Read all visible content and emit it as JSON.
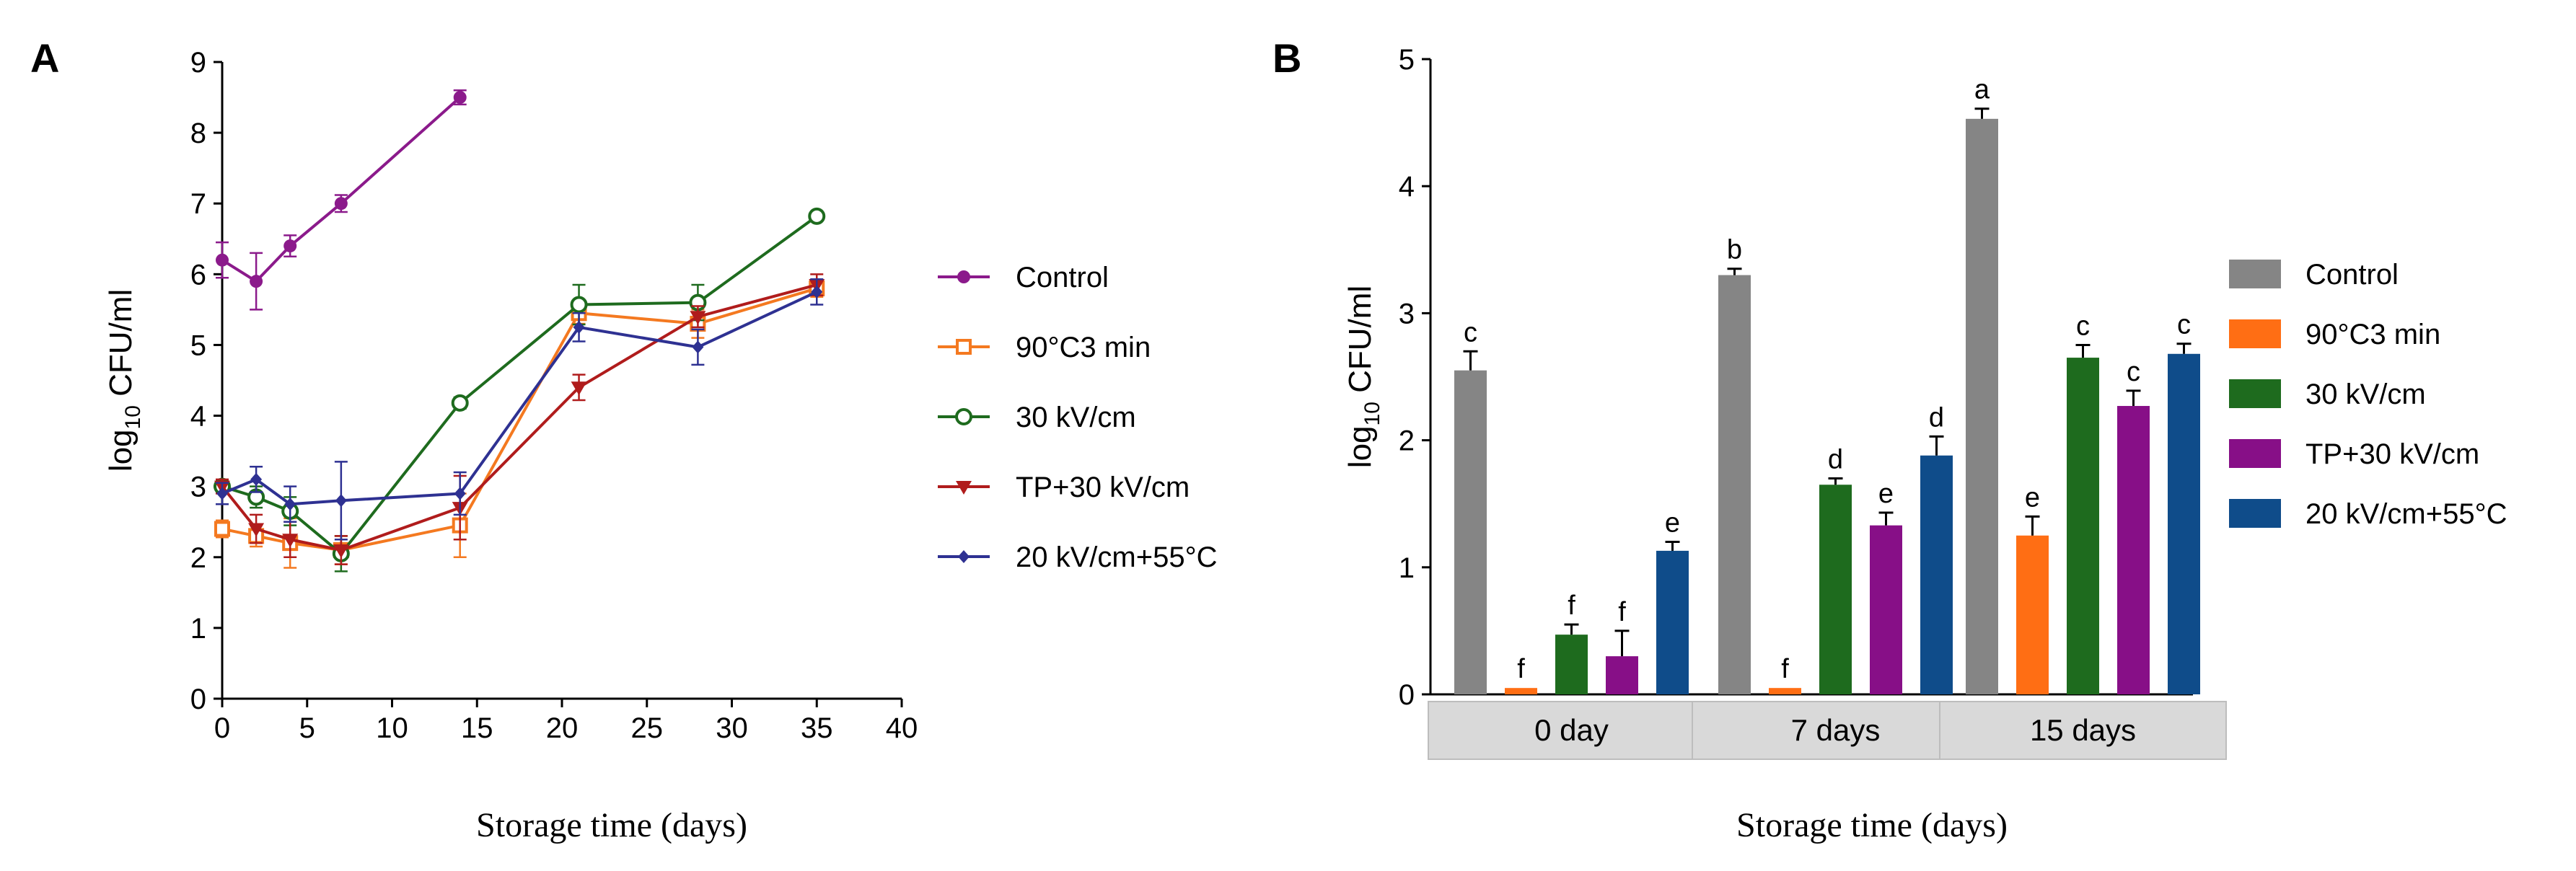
{
  "chart_data": [
    {
      "panel": "A",
      "type": "line",
      "xlabel": "Storage time (days)",
      "ylabel_main": "log",
      "ylabel_sub": "10",
      "ylabel_rest": " CFU/ml",
      "xlim": [
        0,
        40
      ],
      "ylim": [
        0,
        9
      ],
      "xticks": [
        0,
        5,
        10,
        15,
        20,
        25,
        30,
        35,
        40
      ],
      "yticks": [
        0,
        1,
        2,
        3,
        4,
        5,
        6,
        7,
        8,
        9
      ],
      "grid": false,
      "legend_position": "right",
      "series": [
        {
          "name": "Control",
          "color": "#8B1A8B",
          "marker": "circle-filled",
          "x": [
            0,
            2,
            4,
            7,
            14
          ],
          "y": [
            6.2,
            5.9,
            6.4,
            7.0,
            8.5
          ],
          "err": [
            0.25,
            0.4,
            0.15,
            0.12,
            0.1
          ]
        },
        {
          "name": "90°C3 min",
          "color": "#F47920",
          "marker": "square-open",
          "x": [
            0,
            2,
            4,
            7,
            14,
            21,
            28,
            35
          ],
          "y": [
            2.4,
            2.3,
            2.2,
            2.1,
            2.45,
            5.45,
            5.3,
            5.8
          ],
          "err": [
            0.12,
            0.15,
            0.35,
            0.2,
            0.45,
            0.15,
            0.2,
            0.12
          ]
        },
        {
          "name": "30 kV/cm",
          "color": "#1E6B1E",
          "marker": "circle-open",
          "x": [
            0,
            2,
            4,
            7,
            14,
            21,
            28,
            35
          ],
          "y": [
            3.0,
            2.85,
            2.65,
            2.05,
            4.18,
            5.57,
            5.6,
            6.82
          ],
          "err": [
            0.08,
            0.15,
            0.2,
            0.25,
            0.08,
            0.28,
            0.25,
            0.06
          ]
        },
        {
          "name": "TP+30 kV/cm",
          "color": "#B01C1C",
          "marker": "triangle-down",
          "x": [
            0,
            2,
            4,
            7,
            14,
            21,
            28,
            35
          ],
          "y": [
            3.0,
            2.4,
            2.25,
            2.1,
            2.7,
            4.4,
            5.4,
            5.85
          ],
          "err": [
            0.1,
            0.2,
            0.25,
            0.2,
            0.45,
            0.18,
            0.15,
            0.15
          ]
        },
        {
          "name": "20 kV/cm+55°C",
          "color": "#2E3192",
          "marker": "diamond",
          "x": [
            0,
            2,
            4,
            7,
            14,
            21,
            28,
            35
          ],
          "y": [
            2.9,
            3.1,
            2.75,
            2.8,
            2.9,
            5.25,
            4.97,
            5.75
          ],
          "err": [
            0.15,
            0.18,
            0.25,
            0.55,
            0.3,
            0.2,
            0.25,
            0.18
          ]
        }
      ]
    },
    {
      "panel": "B",
      "type": "bar",
      "xlabel": "Storage time (days)",
      "ylabel_main": "log",
      "ylabel_sub": "10",
      "ylabel_rest": " CFU/ml",
      "ylim": [
        0,
        5
      ],
      "yticks": [
        0,
        1,
        2,
        3,
        4,
        5
      ],
      "categories": [
        "0 day",
        "7 days",
        "15 days"
      ],
      "legend_position": "right",
      "series": [
        {
          "name": "Control",
          "color": "#858585",
          "values": [
            2.55,
            3.3,
            4.53
          ],
          "err": [
            0.15,
            0.05,
            0.08
          ],
          "labels": [
            "c",
            "b",
            "a"
          ]
        },
        {
          "name": "90°C3 min",
          "color": "#FF6E14",
          "values": [
            0.05,
            0.05,
            1.25
          ],
          "err": [
            0,
            0,
            0.15
          ],
          "labels": [
            "f",
            "f",
            "e"
          ]
        },
        {
          "name": "30 kV/cm",
          "color": "#1E6B1E",
          "values": [
            0.47,
            1.65,
            2.65
          ],
          "err": [
            0.08,
            0.05,
            0.1
          ],
          "labels": [
            "f",
            "d",
            "c"
          ]
        },
        {
          "name": "TP+30 kV/cm",
          "color": "#870F87",
          "values": [
            0.3,
            1.33,
            2.27
          ],
          "err": [
            0.2,
            0.1,
            0.12
          ],
          "labels": [
            "f",
            "e",
            "c"
          ]
        },
        {
          "name": "20 kV/cm+55°C",
          "color": "#0F4C8A",
          "values": [
            1.13,
            1.88,
            2.68
          ],
          "err": [
            0.07,
            0.15,
            0.08
          ],
          "labels": [
            "e",
            "d",
            "c"
          ]
        }
      ]
    }
  ]
}
